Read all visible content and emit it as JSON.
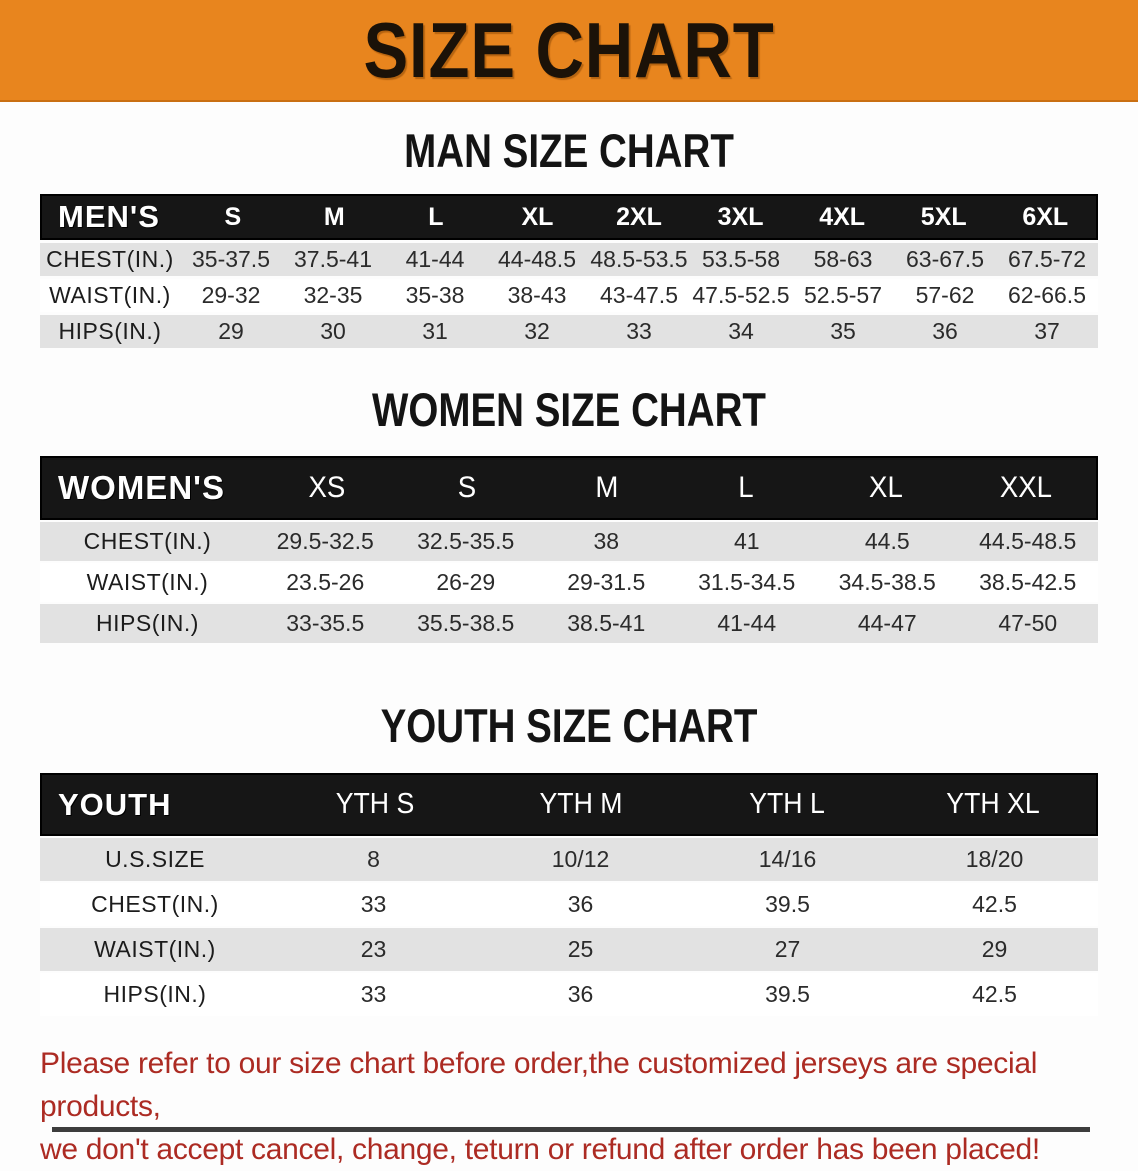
{
  "banner": {
    "title": "SIZE CHART"
  },
  "sections": [
    {
      "heading": "MAN SIZE CHART",
      "table": {
        "corner": "MEN'S",
        "columns": [
          "S",
          "M",
          "L",
          "XL",
          "2XL",
          "3XL",
          "4XL",
          "5XL",
          "6XL"
        ],
        "rows": [
          {
            "label": "CHEST(IN.)",
            "values": [
              "35-37.5",
              "37.5-41",
              "41-44",
              "44-48.5",
              "48.5-53.5",
              "53.5-58",
              "58-63",
              "63-67.5",
              "67.5-72"
            ]
          },
          {
            "label": "WAIST(IN.)",
            "values": [
              "29-32",
              "32-35",
              "35-38",
              "38-43",
              "43-47.5",
              "47.5-52.5",
              "52.5-57",
              "57-62",
              "62-66.5"
            ]
          },
          {
            "label": "HIPS(IN.)",
            "values": [
              "29",
              "30",
              "31",
              "32",
              "33",
              "34",
              "35",
              "36",
              "37"
            ]
          }
        ]
      }
    },
    {
      "heading": "WOMEN SIZE CHART",
      "table": {
        "corner": "WOMEN'S",
        "columns": [
          "XS",
          "S",
          "M",
          "L",
          "XL",
          "XXL"
        ],
        "rows": [
          {
            "label": "CHEST(IN.)",
            "values": [
              "29.5-32.5",
              "32.5-35.5",
              "38",
              "41",
              "44.5",
              "44.5-48.5"
            ]
          },
          {
            "label": "WAIST(IN.)",
            "values": [
              "23.5-26",
              "26-29",
              "29-31.5",
              "31.5-34.5",
              "34.5-38.5",
              "38.5-42.5"
            ]
          },
          {
            "label": "HIPS(IN.)",
            "values": [
              "33-35.5",
              "35.5-38.5",
              "38.5-41",
              "41-44",
              "44-47",
              "47-50"
            ]
          }
        ]
      }
    },
    {
      "heading": "YOUTH SIZE CHART",
      "table": {
        "corner": "YOUTH",
        "columns": [
          "YTH S",
          "YTH M",
          "YTH L",
          "YTH XL"
        ],
        "rows": [
          {
            "label": "U.S.SIZE",
            "values": [
              "8",
              "10/12",
              "14/16",
              "18/20"
            ]
          },
          {
            "label": "CHEST(IN.)",
            "values": [
              "33",
              "36",
              "39.5",
              "42.5"
            ]
          },
          {
            "label": "WAIST(IN.)",
            "values": [
              "23",
              "25",
              "27",
              "29"
            ]
          },
          {
            "label": "HIPS(IN.)",
            "values": [
              "33",
              "36",
              "39.5",
              "42.5"
            ]
          }
        ]
      }
    }
  ],
  "footer": {
    "line1": "Please refer to our size chart before order,the customized jerseys are special products,",
    "line2": "we don't accept cancel, change, teturn or refund after order has been placed!"
  },
  "colors": {
    "banner_bg": "#E8851E",
    "table_header_bg": "#161616",
    "row_shade_bg": "#E2E2E2",
    "note_color": "#AC2B23"
  }
}
